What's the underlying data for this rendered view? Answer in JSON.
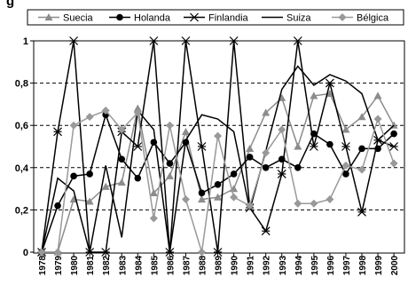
{
  "chart_data": {
    "type": "line",
    "title_fragment": "g",
    "x": [
      "1978",
      "1979",
      "1980",
      "1981",
      "1982",
      "1983",
      "1984",
      "1985",
      "1986",
      "1987",
      "1988",
      "1989",
      "1990",
      "1991",
      "1992",
      "1993",
      "1994",
      "1995",
      "1996",
      "1997",
      "1998",
      "1999",
      "2000"
    ],
    "ylim": [
      0,
      1
    ],
    "y_ticks": [
      "0",
      "0,2",
      "0,4",
      "0,6",
      "0,8",
      "1"
    ],
    "grid": "horizontal dashed",
    "legend_position": "top",
    "series": [
      {
        "name": "Suecia",
        "color": "#8c8c8c",
        "marker": "triangle",
        "values": [
          0.0,
          0.0,
          0.25,
          0.24,
          0.31,
          0.33,
          0.68,
          0.28,
          0.36,
          0.57,
          0.25,
          0.26,
          0.3,
          0.49,
          0.66,
          0.73,
          0.5,
          0.74,
          0.75,
          0.58,
          0.64,
          0.74,
          0.6
        ]
      },
      {
        "name": "Holanda",
        "color": "#000000",
        "marker": "circle",
        "values": [
          0.0,
          0.22,
          0.36,
          0.37,
          0.65,
          0.44,
          0.35,
          0.52,
          0.42,
          0.52,
          0.28,
          0.32,
          0.37,
          0.45,
          0.4,
          0.44,
          0.4,
          0.56,
          0.51,
          0.37,
          0.49,
          0.49,
          0.56
        ]
      },
      {
        "name": "Finlandia",
        "color": "#000000",
        "marker": "star",
        "values": [
          0.0,
          0.57,
          1.0,
          0.0,
          0.0,
          0.57,
          0.5,
          1.0,
          0.0,
          1.0,
          0.5,
          0.0,
          1.0,
          0.21,
          0.1,
          0.37,
          1.0,
          0.5,
          0.8,
          0.5,
          0.19,
          0.53,
          0.5
        ]
      },
      {
        "name": "Suiza",
        "color": "#000000",
        "marker": "none",
        "values": [
          0.0,
          0.35,
          0.29,
          0.0,
          0.41,
          0.07,
          0.67,
          0.58,
          0.0,
          0.53,
          0.65,
          0.63,
          0.57,
          0.2,
          0.48,
          0.77,
          0.88,
          0.79,
          0.84,
          0.81,
          0.75,
          0.53,
          0.6
        ]
      },
      {
        "name": "Bélgica",
        "color": "#999999",
        "marker": "diamond",
        "values": [
          0.0,
          0.0,
          0.6,
          0.64,
          0.67,
          0.58,
          0.66,
          0.16,
          0.6,
          0.25,
          0.0,
          0.55,
          0.26,
          0.22,
          0.47,
          0.58,
          0.23,
          0.23,
          0.25,
          0.41,
          0.39,
          0.63,
          0.42
        ]
      }
    ]
  }
}
